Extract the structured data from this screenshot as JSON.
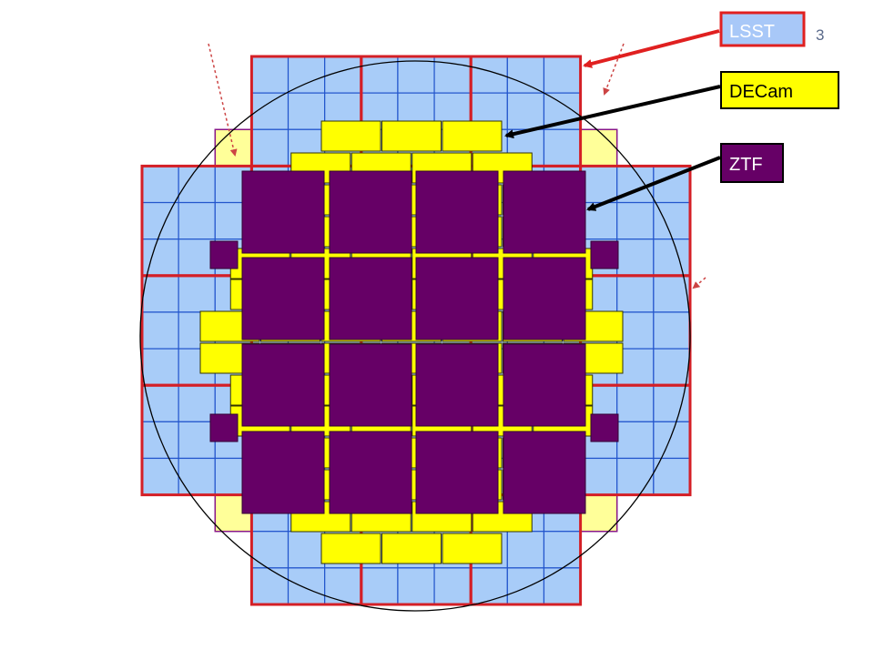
{
  "slide": {
    "page_number": "3"
  },
  "labels": [
    {
      "key": "lsst",
      "text": "LSST",
      "fill": "#a8c8f8",
      "border": "#e02020",
      "text_color": "#ffffff"
    },
    {
      "key": "decam",
      "text": "DECam",
      "fill": "#ffff00",
      "border": "#000000",
      "text_color": "#000000"
    },
    {
      "key": "ztf",
      "text": "ZTF",
      "fill": "#660066",
      "border": "#000000",
      "text_color": "#ffffff"
    }
  ],
  "colors": {
    "lsst_fill": "#a8ccf8",
    "lsst_grid": "#2255cc",
    "lsst_raft": "#d41f26",
    "green_fill": "#99f099",
    "pale_yellow_fill": "#ffff99",
    "purple_outline": "#881888",
    "decam_ccd": "#ffff00",
    "ztf_ccd": "#660066",
    "pointer_red": "#e02020",
    "pointer_black": "#000000",
    "circle": "#000000"
  }
}
